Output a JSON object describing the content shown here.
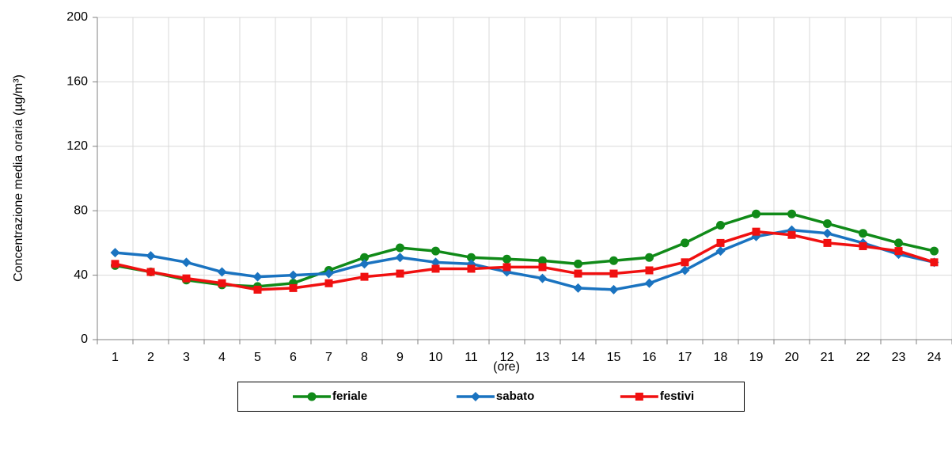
{
  "chart_data": {
    "type": "line",
    "y_label": "Concentrazione media oraria  (µg/m³)",
    "x_label": "(ore)",
    "categories": [
      "1",
      "2",
      "3",
      "4",
      "5",
      "6",
      "7",
      "8",
      "9",
      "10",
      "11",
      "12",
      "13",
      "14",
      "15",
      "16",
      "17",
      "18",
      "19",
      "20",
      "21",
      "22",
      "23",
      "24"
    ],
    "series": [
      {
        "name": "feriale",
        "color": "#108a18",
        "marker": "circle",
        "values": [
          46,
          42,
          37,
          34,
          33,
          35,
          43,
          51,
          57,
          55,
          51,
          50,
          49,
          47,
          49,
          51,
          60,
          71,
          78,
          78,
          72,
          66,
          60,
          55
        ]
      },
      {
        "name": "sabato",
        "color": "#1a73c0",
        "marker": "diamond",
        "values": [
          54,
          52,
          48,
          42,
          39,
          40,
          41,
          47,
          51,
          48,
          47,
          42,
          38,
          32,
          31,
          35,
          43,
          55,
          64,
          68,
          66,
          60,
          53,
          48
        ]
      },
      {
        "name": "festivi",
        "color": "#f01010",
        "marker": "square",
        "values": [
          47,
          42,
          38,
          35,
          31,
          32,
          35,
          39,
          41,
          44,
          44,
          45,
          45,
          41,
          41,
          43,
          48,
          60,
          67,
          65,
          60,
          58,
          55,
          48
        ]
      }
    ],
    "ylim": [
      0,
      200
    ],
    "yticks": [
      0,
      40,
      80,
      120,
      160,
      200
    ],
    "grid": true,
    "legend": "bottom"
  }
}
